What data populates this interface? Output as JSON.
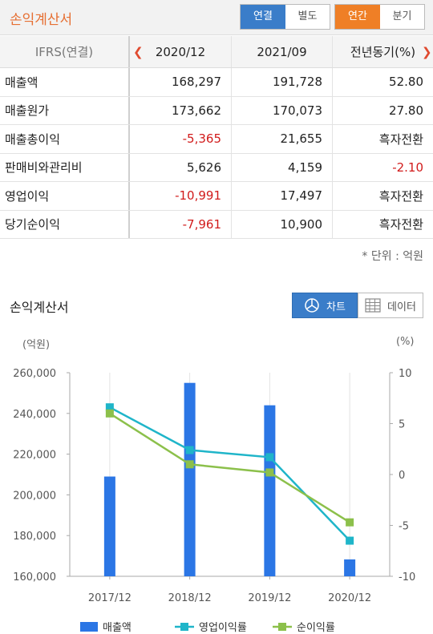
{
  "header": {
    "title": "손익계산서",
    "toggle1": [
      "연결",
      "별도"
    ],
    "toggle2": [
      "연간",
      "분기"
    ]
  },
  "table": {
    "columns": [
      "IFRS(연결)",
      "2020/12",
      "2021/09",
      "전년동기(%)"
    ],
    "rows": [
      {
        "label": "매출액",
        "v1": "168,297",
        "v2": "191,728",
        "v3": "52.80",
        "neg": [
          false,
          false,
          false
        ]
      },
      {
        "label": "매출원가",
        "v1": "173,662",
        "v2": "170,073",
        "v3": "27.80",
        "neg": [
          false,
          false,
          false
        ]
      },
      {
        "label": "매출총이익",
        "v1": "-5,365",
        "v2": "21,655",
        "v3": "흑자전환",
        "neg": [
          true,
          false,
          false
        ]
      },
      {
        "label": "판매비와관리비",
        "v1": "5,626",
        "v2": "4,159",
        "v3": "-2.10",
        "neg": [
          false,
          false,
          true
        ]
      },
      {
        "label": "영업이익",
        "v1": "-10,991",
        "v2": "17,497",
        "v3": "흑자전환",
        "neg": [
          true,
          false,
          false
        ]
      },
      {
        "label": "당기순이익",
        "v1": "-7,961",
        "v2": "10,900",
        "v3": "흑자전환",
        "neg": [
          true,
          false,
          false
        ]
      }
    ],
    "unit_note": "* 단위 : 억원"
  },
  "chart_section": {
    "title": "손익계산서",
    "chart_btn": "차트",
    "data_btn": "데이터"
  },
  "chart_data": {
    "type": "bar",
    "categories": [
      "2017/12",
      "2018/12",
      "2019/12",
      "2020/12"
    ],
    "y_left_unit": "(억원)",
    "y_right_unit": "(%)",
    "ylim_left": [
      160000,
      260000
    ],
    "yticks_left": [
      "260,000",
      "240,000",
      "220,000",
      "200,000",
      "180,000",
      "160,000"
    ],
    "ylim_right": [
      -10,
      10
    ],
    "yticks_right": [
      "10",
      "5",
      "0",
      "-5",
      "-10"
    ],
    "series": [
      {
        "name": "매출액",
        "type": "bar",
        "axis": "left",
        "color": "#2b76e5",
        "values": [
          209000,
          255000,
          244000,
          168297
        ]
      },
      {
        "name": "영업이익률",
        "type": "line",
        "axis": "right",
        "color": "#1fb5c9",
        "values": [
          6.6,
          2.4,
          1.7,
          -6.5
        ]
      },
      {
        "name": "순이익률",
        "type": "line",
        "axis": "right",
        "color": "#8cc04b",
        "values": [
          6.0,
          1.0,
          0.2,
          -4.7
        ]
      }
    ],
    "grid": "vertical-only"
  }
}
